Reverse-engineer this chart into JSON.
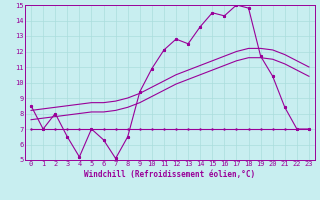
{
  "xlabel": "Windchill (Refroidissement éolien,°C)",
  "ylabel": "",
  "bg_color": "#c8eef0",
  "grid_color": "#aadddd",
  "line_color": "#990099",
  "xlim": [
    -0.5,
    23.5
  ],
  "ylim": [
    5,
    15
  ],
  "yticks": [
    5,
    6,
    7,
    8,
    9,
    10,
    11,
    12,
    13,
    14,
    15
  ],
  "xticks": [
    0,
    1,
    2,
    3,
    4,
    5,
    6,
    7,
    8,
    9,
    10,
    11,
    12,
    13,
    14,
    15,
    16,
    17,
    18,
    19,
    20,
    21,
    22,
    23
  ],
  "series1_x": [
    0,
    1,
    2,
    3,
    4,
    5,
    6,
    7,
    8,
    9,
    10,
    11,
    12,
    13,
    14,
    15,
    16,
    17,
    18,
    19,
    20,
    21,
    22,
    23
  ],
  "series1_y": [
    8.5,
    7.0,
    8.0,
    6.5,
    5.2,
    7.0,
    6.3,
    5.1,
    6.5,
    9.4,
    10.9,
    12.1,
    12.8,
    12.5,
    13.6,
    14.5,
    14.3,
    15.0,
    14.8,
    11.7,
    10.4,
    8.4,
    7.0,
    7.0
  ],
  "series2_x": [
    0,
    1,
    2,
    3,
    4,
    5,
    6,
    7,
    8,
    9,
    10,
    11,
    12,
    13,
    14,
    15,
    16,
    17,
    18,
    19,
    20,
    21,
    22,
    23
  ],
  "series2_y": [
    7.0,
    7.0,
    7.0,
    7.0,
    7.0,
    7.0,
    7.0,
    7.0,
    7.0,
    7.0,
    7.0,
    7.0,
    7.0,
    7.0,
    7.0,
    7.0,
    7.0,
    7.0,
    7.0,
    7.0,
    7.0,
    7.0,
    7.0,
    7.0
  ],
  "series3_x": [
    0,
    1,
    2,
    3,
    4,
    5,
    6,
    7,
    8,
    9,
    10,
    11,
    12,
    13,
    14,
    15,
    16,
    17,
    18,
    19,
    20,
    21,
    22,
    23
  ],
  "series3_y": [
    7.6,
    7.7,
    7.8,
    7.9,
    8.0,
    8.1,
    8.1,
    8.2,
    8.4,
    8.7,
    9.1,
    9.5,
    9.9,
    10.2,
    10.5,
    10.8,
    11.1,
    11.4,
    11.6,
    11.6,
    11.5,
    11.2,
    10.8,
    10.4
  ],
  "series4_x": [
    0,
    1,
    2,
    3,
    4,
    5,
    6,
    7,
    8,
    9,
    10,
    11,
    12,
    13,
    14,
    15,
    16,
    17,
    18,
    19,
    20,
    21,
    22,
    23
  ],
  "series4_y": [
    8.2,
    8.3,
    8.4,
    8.5,
    8.6,
    8.7,
    8.7,
    8.8,
    9.0,
    9.3,
    9.7,
    10.1,
    10.5,
    10.8,
    11.1,
    11.4,
    11.7,
    12.0,
    12.2,
    12.2,
    12.1,
    11.8,
    11.4,
    11.0
  ]
}
